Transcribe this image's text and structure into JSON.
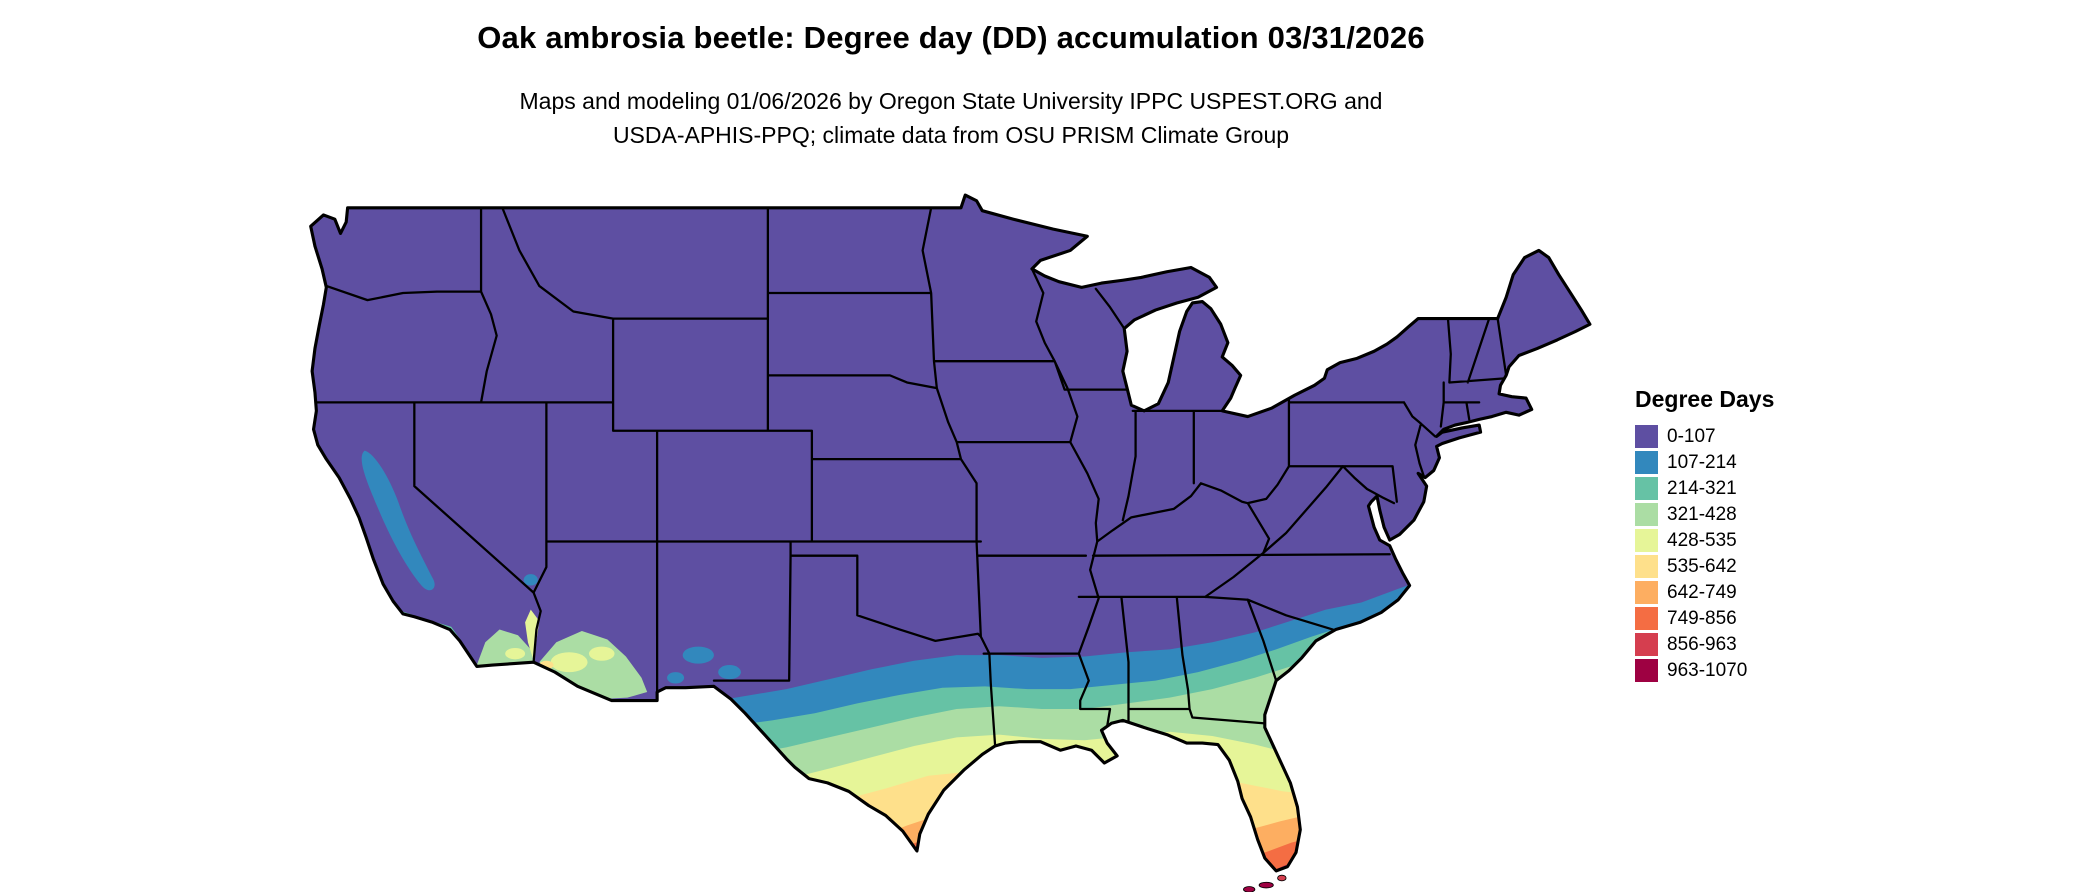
{
  "title": "Oak ambrosia beetle: Degree day (DD) accumulation 03/31/2026",
  "subtitle_line1": "Maps and modeling 01/06/2026 by Oregon State University IPPC USPEST.ORG and",
  "subtitle_line2": "USDA-APHIS-PPQ; climate data from OSU PRISM Climate Group",
  "legend": {
    "title": "Degree Days",
    "items": [
      {
        "label": "0-107",
        "color": "#5e4fa2"
      },
      {
        "label": "107-214",
        "color": "#3288bd"
      },
      {
        "label": "214-321",
        "color": "#66c2a5"
      },
      {
        "label": "321-428",
        "color": "#abdda4"
      },
      {
        "label": "428-535",
        "color": "#e6f598"
      },
      {
        "label": "535-642",
        "color": "#fee08b"
      },
      {
        "label": "642-749",
        "color": "#fdae61"
      },
      {
        "label": "749-856",
        "color": "#f46d43"
      },
      {
        "label": "856-963",
        "color": "#d53e4f"
      },
      {
        "label": "963-1070",
        "color": "#9e0142"
      }
    ]
  }
}
